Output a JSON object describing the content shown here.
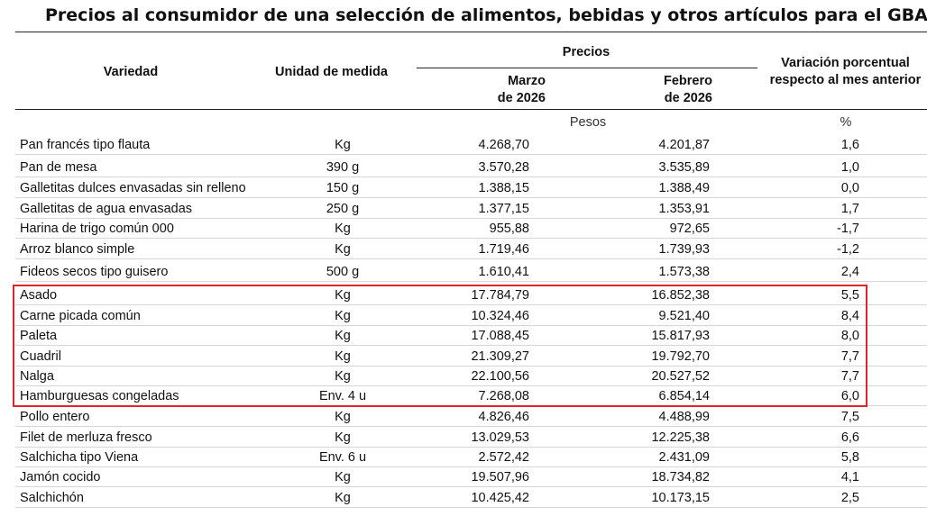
{
  "title": "Precios al consumidor de una selección de alimentos, bebidas y otros artículos para el GBA",
  "header": {
    "variety": "Variedad",
    "unit": "Unidad de medida",
    "prices": "Precios",
    "march_line1": "Marzo",
    "march_line2": "de 2026",
    "feb_line1": "Febrero",
    "feb_line2": "de 2026",
    "var_line1": "Variación porcentual",
    "var_line2": "respecto al mes anterior",
    "unit_pesos": "Pesos",
    "unit_pct": "%"
  },
  "rows": [
    {
      "name": "Pan francés tipo flauta",
      "unit": "Kg",
      "march": "4.268,70",
      "feb": "4.201,87",
      "var": "1,6"
    },
    {
      "name": "Pan de mesa",
      "unit": "390 g",
      "march": "3.570,28",
      "feb": "3.535,89",
      "var": "1,0"
    },
    {
      "name": "Galletitas dulces envasadas sin relleno",
      "unit": "150 g",
      "march": "1.388,15",
      "feb": "1.388,49",
      "var": "0,0"
    },
    {
      "name": "Galletitas de agua envasadas",
      "unit": "250 g",
      "march": "1.377,15",
      "feb": "1.353,91",
      "var": "1,7"
    },
    {
      "name": "Harina de trigo común 000",
      "unit": "Kg",
      "march": "955,88",
      "feb": "972,65",
      "var": "-1,7"
    },
    {
      "name": "Arroz blanco simple",
      "unit": "Kg",
      "march": "1.719,46",
      "feb": "1.739,93",
      "var": "-1,2"
    },
    {
      "name": "Fideos secos tipo guisero",
      "unit": "500 g",
      "march": "1.610,41",
      "feb": "1.573,38",
      "var": "2,4"
    },
    {
      "name": "Asado",
      "unit": "Kg",
      "march": "17.784,79",
      "feb": "16.852,38",
      "var": "5,5"
    },
    {
      "name": "Carne picada común",
      "unit": "Kg",
      "march": "10.324,46",
      "feb": "9.521,40",
      "var": "8,4"
    },
    {
      "name": "Paleta",
      "unit": "Kg",
      "march": "17.088,45",
      "feb": "15.817,93",
      "var": "8,0"
    },
    {
      "name": "Cuadril",
      "unit": "Kg",
      "march": "21.309,27",
      "feb": "19.792,70",
      "var": "7,7"
    },
    {
      "name": "Nalga",
      "unit": "Kg",
      "march": "22.100,56",
      "feb": "20.527,52",
      "var": "7,7"
    },
    {
      "name": "Hamburguesas congeladas",
      "unit": "Env. 4 u",
      "march": "7.268,08",
      "feb": "6.854,14",
      "var": "6,0"
    },
    {
      "name": "Pollo entero",
      "unit": "Kg",
      "march": "4.826,46",
      "feb": "4.488,99",
      "var": "7,5"
    },
    {
      "name": "Filet de merluza fresco",
      "unit": "Kg",
      "march": "13.029,53",
      "feb": "12.225,38",
      "var": "6,6"
    },
    {
      "name": "Salchicha tipo Viena",
      "unit": "Env. 6 u",
      "march": "2.572,42",
      "feb": "2.431,09",
      "var": "5,8"
    },
    {
      "name": "Jamón cocido",
      "unit": "Kg",
      "march": "19.507,96",
      "feb": "18.734,82",
      "var": "4,1"
    },
    {
      "name": "Salchichón",
      "unit": "Kg",
      "march": "10.425,42",
      "feb": "10.173,15",
      "var": "2,5"
    }
  ],
  "highlight_color": "#e0242a"
}
